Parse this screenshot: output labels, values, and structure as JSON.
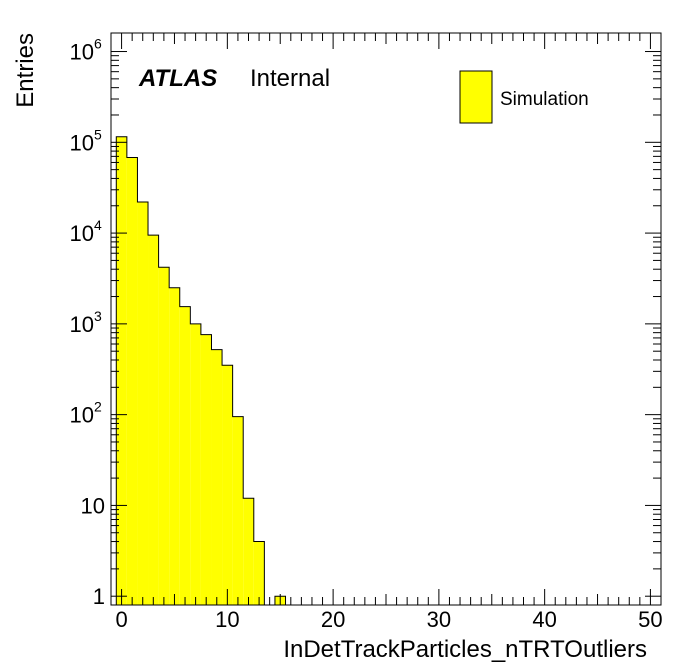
{
  "chart_data": {
    "type": "bar",
    "subtype": "histogram",
    "log_y": true,
    "xlabel": "InDetTrackParticles_nTRTOutliers",
    "ylabel": "Entries",
    "xlim": [
      -1,
      51
    ],
    "ylim": [
      0.8,
      1600000
    ],
    "bin_width": 1,
    "x_ticks": [
      "0",
      "10",
      "20",
      "30",
      "40",
      "50"
    ],
    "y_ticks": [
      {
        "value": 1,
        "base": "1",
        "exp": ""
      },
      {
        "value": 10,
        "base": "10",
        "exp": ""
      },
      {
        "value": 100,
        "base": "10",
        "exp": "2"
      },
      {
        "value": 1000,
        "base": "10",
        "exp": "3"
      },
      {
        "value": 10000,
        "base": "10",
        "exp": "4"
      },
      {
        "value": 100000,
        "base": "10",
        "exp": "5"
      },
      {
        "value": 1000000,
        "base": "10",
        "exp": "6"
      }
    ],
    "bins": [
      {
        "x": 0,
        "value": 115000
      },
      {
        "x": 1,
        "value": 68000
      },
      {
        "x": 2,
        "value": 22000
      },
      {
        "x": 3,
        "value": 9500
      },
      {
        "x": 4,
        "value": 4200
      },
      {
        "x": 5,
        "value": 2500
      },
      {
        "x": 6,
        "value": 1550
      },
      {
        "x": 7,
        "value": 1000
      },
      {
        "x": 8,
        "value": 760
      },
      {
        "x": 9,
        "value": 520
      },
      {
        "x": 10,
        "value": 350
      },
      {
        "x": 11,
        "value": 95
      },
      {
        "x": 12,
        "value": 12
      },
      {
        "x": 13,
        "value": 4
      },
      {
        "x": 15,
        "value": 1
      }
    ],
    "series": [
      {
        "name": "Simulation",
        "color": "#ffff00",
        "edge": "#000000"
      }
    ],
    "legend_position": "top-right",
    "grid": false
  },
  "labels": {
    "atlas": "ATLAS",
    "internal": "Internal",
    "legend": "Simulation"
  }
}
